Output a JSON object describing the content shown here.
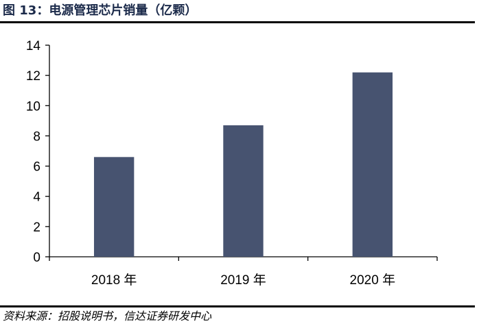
{
  "figure": {
    "title": "图 13：电源管理芯片销量（亿颗）",
    "source": "资料来源：招股说明书，信达证券研发中心"
  },
  "colors": {
    "bar": "#475370",
    "axis": "#000000",
    "title": "#1b2a4a"
  },
  "chart_data": {
    "type": "bar",
    "categories": [
      "2018 年",
      "2019 年",
      "2020 年"
    ],
    "values": [
      6.6,
      8.7,
      12.2
    ],
    "ylim": [
      0,
      14
    ],
    "yticks": [
      0,
      2,
      4,
      6,
      8,
      10,
      12,
      14
    ],
    "title": "",
    "xlabel": "",
    "ylabel": "",
    "grid": false,
    "legend": "none"
  }
}
